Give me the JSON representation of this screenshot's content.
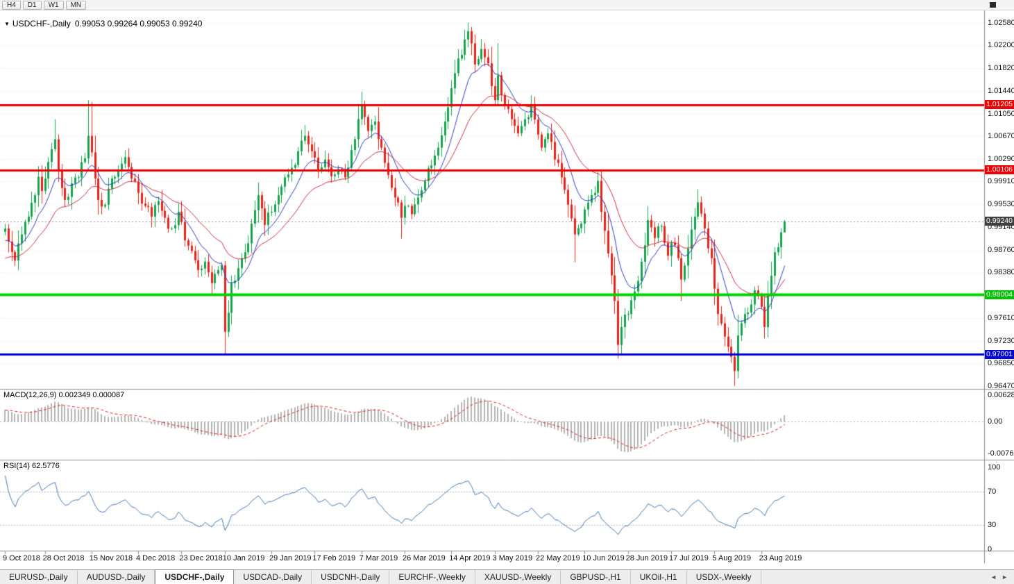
{
  "colors": {
    "bull": "#17a24f",
    "bear": "#e8231a",
    "ma_fast": "#2b3cc4",
    "ma_slow": "#cc2f44",
    "macd_hist": "#b4b4b4",
    "macd_signal": "#dd2222",
    "rsi": "#4577b5",
    "grid": "#e7e7e7"
  },
  "icons": {
    "symbol_dropdown": "▼"
  },
  "toolbar": {
    "timeframes": [
      "H4",
      "D1",
      "W1",
      "MN"
    ]
  },
  "chart_header": {
    "symbol_label": "USDCHF-,Daily",
    "ohlc": "0.99053 0.99264 0.99053 0.99240"
  },
  "price_axis": {
    "labels": [
      "1.02580",
      "1.02200",
      "1.01820",
      "1.01440",
      "1.01050",
      "1.00670",
      "1.00290",
      "0.99910",
      "0.99530",
      "0.99140",
      "0.98760",
      "0.98380",
      "0.97610",
      "0.97230",
      "0.96850",
      "0.96470"
    ],
    "tags": [
      {
        "name": "resistance-upper",
        "text": "1.01205",
        "price": 1.01205,
        "color": "#ee0000"
      },
      {
        "name": "resistance-lower",
        "text": "1.00106",
        "price": 1.00106,
        "color": "#ee0000"
      },
      {
        "name": "current-price",
        "text": "0.99240",
        "price": 0.9924,
        "color": "#404040"
      },
      {
        "name": "support-green",
        "text": "0.98004",
        "price": 0.98004,
        "color": "#00c000"
      },
      {
        "name": "support-blue",
        "text": "0.97001",
        "price": 0.97001,
        "color": "#0000dd"
      }
    ]
  },
  "horizontal_lines": [
    {
      "price": 1.01205,
      "color": "#ee0000",
      "width": 3
    },
    {
      "price": 1.00106,
      "color": "#ee0000",
      "width": 3
    },
    {
      "price": 0.98004,
      "color": "#00d400",
      "width": 4
    },
    {
      "price": 0.97001,
      "color": "#0000dd",
      "width": 3
    }
  ],
  "current_price": {
    "value": "0.99240",
    "price": 0.9924
  },
  "indicators": {
    "macd": {
      "label": "MACD(12,26,9) 0.002349 0.000087",
      "params": {
        "fast": 12,
        "slow": 26,
        "signal": 9
      },
      "main_value": 0.002349,
      "signal_value": 8.7e-05,
      "axis_labels": [
        {
          "text": "0.00628",
          "v": 0.00628
        },
        {
          "text": "0.00",
          "v": 0
        },
        {
          "text": "-0.00762",
          "v": -0.00762
        }
      ]
    },
    "rsi": {
      "label": "RSI(14) 62.5776",
      "period": 14,
      "value": 62.5776,
      "levels": [
        70,
        30
      ],
      "axis_labels": [
        {
          "text": "100",
          "v": 100
        },
        {
          "text": "70",
          "v": 70
        },
        {
          "text": "30",
          "v": 30
        },
        {
          "text": "0",
          "v": 0
        }
      ]
    }
  },
  "dates": [
    {
      "d": 0,
      "label": "9 Oct 2018"
    },
    {
      "d": 12,
      "label": "28 Oct 2018"
    },
    {
      "d": 26,
      "label": "15 Nov 2018"
    },
    {
      "d": 40,
      "label": "4 Dec 2018"
    },
    {
      "d": 53,
      "label": "23 Dec 2018"
    },
    {
      "d": 66,
      "label": "10 Jan 2019"
    },
    {
      "d": 80,
      "label": "29 Jan 2019"
    },
    {
      "d": 93,
      "label": "17 Feb 2019"
    },
    {
      "d": 107,
      "label": "7 Mar 2019"
    },
    {
      "d": 120,
      "label": "26 Mar 2019"
    },
    {
      "d": 134,
      "label": "14 Apr 2019"
    },
    {
      "d": 147,
      "label": "3 May 2019"
    },
    {
      "d": 160,
      "label": "22 May 2019"
    },
    {
      "d": 174,
      "label": "10 Jun 2019"
    },
    {
      "d": 187,
      "label": "28 Jun 2019"
    },
    {
      "d": 200,
      "label": "17 Jul 2019"
    },
    {
      "d": 213,
      "label": "5 Aug 2019"
    },
    {
      "d": 227,
      "label": "23 Aug 2019"
    }
  ],
  "tabs": {
    "scroll_left": "◄",
    "scroll_right": "►",
    "items": [
      {
        "label": "EURUSD-,Daily",
        "active": false
      },
      {
        "label": "AUDUSD-,Daily",
        "active": false
      },
      {
        "label": "USDCHF-,Daily",
        "active": true
      },
      {
        "label": "USDCAD-,Daily",
        "active": false
      },
      {
        "label": "USDCNH-,Daily",
        "active": false
      },
      {
        "label": "EURCHF-,Weekly",
        "active": false
      },
      {
        "label": "XAUUSD-,Weekly",
        "active": false
      },
      {
        "label": "GBPUSD-,H1",
        "active": false
      },
      {
        "label": "UKOil-,H1",
        "active": false
      },
      {
        "label": "USDX-,Weekly",
        "active": false
      }
    ]
  },
  "chart_data": {
    "type": "candlestick",
    "symbol": "USDCHF",
    "timeframe": "Daily",
    "current_ohlc": {
      "open": 0.99053,
      "high": 0.99264,
      "low": 0.99053,
      "close": 0.9924
    },
    "price_range_visible": [
      0.9642,
      1.0279
    ],
    "horizontal_levels": {
      "resistance": [
        1.01205,
        1.00106
      ],
      "support_green": 0.98004,
      "support_blue": 0.97001
    },
    "indicator_values": {
      "macd_main": 0.002349,
      "macd_signal": 8.7e-05,
      "rsi": 62.5776
    },
    "seed": 11,
    "close_anchors": [
      [
        -30,
        0.9758
      ],
      [
        -24,
        0.9795
      ],
      [
        -18,
        0.9832
      ],
      [
        -12,
        0.9868
      ],
      [
        -6,
        0.989
      ],
      [
        -2,
        0.9898
      ],
      [
        0,
        0.9912
      ],
      [
        1,
        0.989
      ],
      [
        3,
        0.9858
      ],
      [
        5,
        0.9902
      ],
      [
        7,
        0.9932
      ],
      [
        9,
        0.9968
      ],
      [
        10,
        0.9999
      ],
      [
        11,
        0.9975
      ],
      [
        13,
        1.0024
      ],
      [
        15,
        1.0062
      ],
      [
        16,
        1.001
      ],
      [
        18,
        0.996
      ],
      [
        20,
        0.9988
      ],
      [
        22,
        0.9998
      ],
      [
        24,
        1.003
      ],
      [
        25,
        1.0068
      ],
      [
        26,
        1.004
      ],
      [
        28,
        0.996
      ],
      [
        30,
        0.9952
      ],
      [
        32,
        0.9996
      ],
      [
        34,
        1.0008
      ],
      [
        36,
        1.0032
      ],
      [
        38,
        0.9996
      ],
      [
        40,
        0.9972
      ],
      [
        42,
        0.995
      ],
      [
        44,
        0.9932
      ],
      [
        46,
        0.9958
      ],
      [
        48,
        0.993
      ],
      [
        50,
        0.9912
      ],
      [
        52,
        0.994
      ],
      [
        54,
        0.9892
      ],
      [
        56,
        0.9874
      ],
      [
        58,
        0.9842
      ],
      [
        60,
        0.9856
      ],
      [
        62,
        0.982
      ],
      [
        64,
        0.9842
      ],
      [
        65,
        0.985
      ],
      [
        66,
        0.9738
      ],
      [
        67,
        0.977
      ],
      [
        68,
        0.982
      ],
      [
        70,
        0.9845
      ],
      [
        72,
        0.9872
      ],
      [
        74,
        0.992
      ],
      [
        76,
        0.9968
      ],
      [
        78,
        0.9918
      ],
      [
        80,
        0.994
      ],
      [
        82,
        0.9968
      ],
      [
        84,
        0.9998
      ],
      [
        86,
        1.0014
      ],
      [
        88,
        1.0042
      ],
      [
        90,
        1.0068
      ],
      [
        92,
        1.0042
      ],
      [
        94,
        1.001
      ],
      [
        96,
        1.0028
      ],
      [
        98,
        1.0
      ],
      [
        100,
        1.0012
      ],
      [
        102,
        0.9998
      ],
      [
        104,
        1.0044
      ],
      [
        106,
        1.0096
      ],
      [
        107,
        1.0118
      ],
      [
        109,
        1.0076
      ],
      [
        111,
        1.0092
      ],
      [
        113,
        1.0048
      ],
      [
        115,
        1.0002
      ],
      [
        117,
        0.9964
      ],
      [
        119,
        0.993
      ],
      [
        120,
        0.995
      ],
      [
        122,
        0.9936
      ],
      [
        124,
        0.9964
      ],
      [
        126,
        0.9992
      ],
      [
        128,
        1.0018
      ],
      [
        130,
        1.0048
      ],
      [
        132,
        1.0092
      ],
      [
        134,
        1.0148
      ],
      [
        136,
        1.0198
      ],
      [
        138,
        1.023
      ],
      [
        139,
        1.0244
      ],
      [
        141,
        1.0188
      ],
      [
        143,
        1.0214
      ],
      [
        145,
        1.019
      ],
      [
        147,
        1.0128
      ],
      [
        148,
        1.017
      ],
      [
        150,
        1.012
      ],
      [
        152,
        1.0096
      ],
      [
        154,
        1.0072
      ],
      [
        156,
        1.0096
      ],
      [
        158,
        1.0118
      ],
      [
        160,
        1.007
      ],
      [
        161,
        1.0048
      ],
      [
        163,
        1.0072
      ],
      [
        165,
        1.0028
      ],
      [
        167,
        0.9998
      ],
      [
        169,
        0.9952
      ],
      [
        171,
        0.9902
      ],
      [
        173,
        0.992
      ],
      [
        174,
        0.9944
      ],
      [
        176,
        0.9968
      ],
      [
        178,
        0.9992
      ],
      [
        179,
        0.994
      ],
      [
        181,
        0.987
      ],
      [
        183,
        0.979
      ],
      [
        184,
        0.9716
      ],
      [
        185,
        0.9746
      ],
      [
        187,
        0.9768
      ],
      [
        189,
        0.9806
      ],
      [
        191,
        0.9856
      ],
      [
        193,
        0.9926
      ],
      [
        195,
        0.9896
      ],
      [
        197,
        0.9916
      ],
      [
        199,
        0.9866
      ],
      [
        200,
        0.9888
      ],
      [
        202,
        0.9862
      ],
      [
        203,
        0.9826
      ],
      [
        205,
        0.9878
      ],
      [
        207,
        0.9932
      ],
      [
        208,
        0.9956
      ],
      [
        210,
        0.9912
      ],
      [
        212,
        0.9862
      ],
      [
        214,
        0.9768
      ],
      [
        216,
        0.973
      ],
      [
        218,
        0.9696
      ],
      [
        219,
        0.9672
      ],
      [
        220,
        0.9732
      ],
      [
        222,
        0.9768
      ],
      [
        224,
        0.9784
      ],
      [
        225,
        0.9808
      ],
      [
        227,
        0.978
      ],
      [
        228,
        0.9746
      ],
      [
        229,
        0.98
      ],
      [
        231,
        0.9872
      ],
      [
        233,
        0.99053
      ],
      [
        234,
        0.9924
      ]
    ],
    "spikes": [
      {
        "d": 15,
        "high": 1.0096
      },
      {
        "d": 25,
        "high": 1.0128
      },
      {
        "d": 26,
        "high": 1.0125
      },
      {
        "d": 66,
        "low": 0.97
      },
      {
        "d": 90,
        "high": 1.0086
      },
      {
        "d": 107,
        "high": 1.0142
      },
      {
        "d": 119,
        "low": 0.9895
      },
      {
        "d": 139,
        "high": 1.0258
      },
      {
        "d": 140,
        "high": 1.024
      },
      {
        "d": 148,
        "high": 1.0224
      },
      {
        "d": 158,
        "high": 1.0136
      },
      {
        "d": 171,
        "low": 0.9855
      },
      {
        "d": 178,
        "high": 1.0006
      },
      {
        "d": 184,
        "low": 0.9693
      },
      {
        "d": 193,
        "high": 0.995
      },
      {
        "d": 203,
        "low": 0.979
      },
      {
        "d": 208,
        "high": 0.9978
      },
      {
        "d": 219,
        "low": 0.9647
      },
      {
        "d": 228,
        "low": 0.9727
      },
      {
        "d": 234,
        "high": 0.99264
      }
    ]
  }
}
